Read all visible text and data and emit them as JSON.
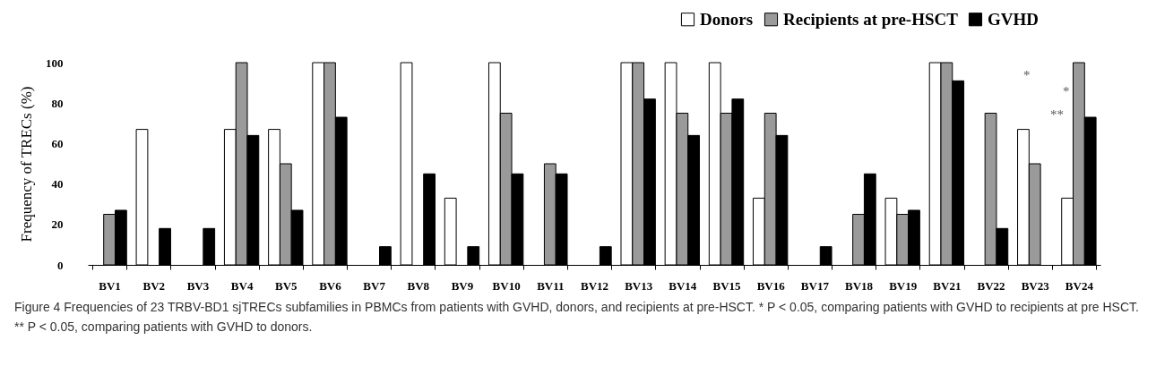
{
  "chart_data": {
    "type": "bar",
    "ylabel": "Frequency of TRECs (%)",
    "categories": [
      "BV1",
      "BV2",
      "BV3",
      "BV4",
      "BV5",
      "BV6",
      "BV7",
      "BV8",
      "BV9",
      "BV10",
      "BV11",
      "BV12",
      "BV13",
      "BV14",
      "BV15",
      "BV16",
      "BV17",
      "BV18",
      "BV19",
      "BV21",
      "BV22",
      "BV23",
      "BV24"
    ],
    "series": [
      {
        "name": "Donors",
        "color": "#ffffff",
        "values": [
          0,
          67,
          0,
          67,
          67,
          100,
          0,
          100,
          33,
          100,
          0,
          0,
          100,
          100,
          100,
          33,
          0,
          0,
          33,
          100,
          0,
          67,
          33
        ]
      },
      {
        "name": "Recipients at pre-HSCT",
        "color": "#9a9a9a",
        "values": [
          25,
          0,
          0,
          100,
          50,
          100,
          0,
          0,
          0,
          75,
          50,
          0,
          100,
          75,
          75,
          75,
          0,
          25,
          25,
          100,
          75,
          50,
          100
        ]
      },
      {
        "name": "GVHD",
        "color": "#000000",
        "values": [
          27,
          18,
          18,
          64,
          27,
          73,
          9,
          45,
          9,
          45,
          45,
          9,
          82,
          64,
          82,
          64,
          9,
          45,
          27,
          91,
          18,
          0,
          73
        ]
      }
    ],
    "ylim": [
      0,
      100
    ],
    "yticks": [
      0,
      20,
      40,
      60,
      80,
      100
    ],
    "grid": false,
    "legend": "top right",
    "annotations": [
      "*",
      "*",
      "**",
      "Figure 4 Frequencies of 23 TRBV-BD1 sjTRECs subfamilies in PBMCs from patients with GVHD, donors, and recipients at pre-HSCT. * P < 0.05, comparing patients with GVHD to recipients at pre HSCT. ** P < 0.05, comparing patients with GVHD to donors."
    ]
  }
}
